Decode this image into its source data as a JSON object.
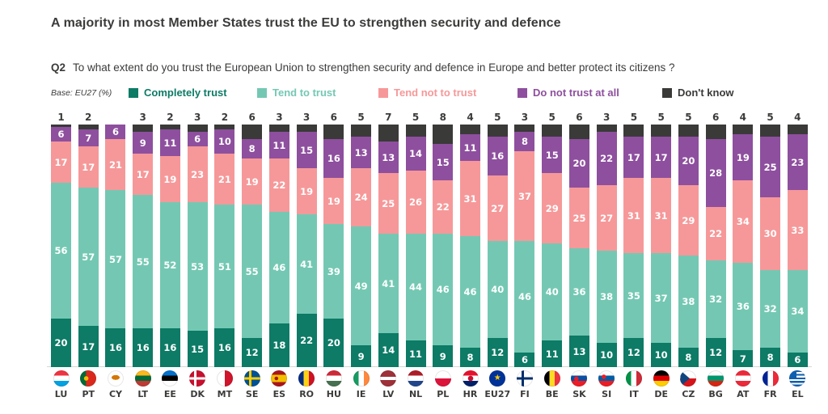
{
  "page": {
    "title": "A majority in most Member States trust the EU to strengthen security and defence",
    "question_code": "Q2",
    "question_text": "To what extent do you trust the European Union to strengthen security and defence in Europe and better protect its citizens ?",
    "base_note": "Base: EU27 (%)"
  },
  "colors": {
    "text_dark": "#3b3b3a",
    "axis_line": "#d6d6d6",
    "completely_trust": "#0d7b66",
    "tend_to_trust": "#74c8b3",
    "tend_not_to_trust": "#f69899",
    "do_not_trust_at_all": "#8e4f9e",
    "dont_know": "#3a3a39"
  },
  "legend": [
    {
      "key": "completely-trust",
      "label": "Completely trust",
      "color": "#0d7b66"
    },
    {
      "key": "tend-to-trust",
      "label": "Tend to trust",
      "color": "#74c8b3"
    },
    {
      "key": "tend-not-to-trust",
      "label": "Tend not to trust",
      "color": "#f69899"
    },
    {
      "key": "do-not-trust-at-all",
      "label": "Do not trust at all",
      "color": "#8e4f9e"
    },
    {
      "key": "dont-know",
      "label": "Don't know",
      "color": "#3a3a39"
    }
  ],
  "chart_data": {
    "type": "bar",
    "stacked": true,
    "orientation": "vertical",
    "unit": "%",
    "ylim": [
      0,
      100
    ],
    "value_labels": "inside segments; Don't know values shown above each bar; zero values not shown",
    "legend_position": "top",
    "categories": [
      "LU",
      "PT",
      "CY",
      "LT",
      "EE",
      "DK",
      "MT",
      "SE",
      "ES",
      "RO",
      "HU",
      "IE",
      "LV",
      "NL",
      "PL",
      "HR",
      "EU27",
      "FI",
      "BE",
      "SK",
      "SI",
      "IT",
      "DE",
      "CZ",
      "BG",
      "AT",
      "FR",
      "EL"
    ],
    "series": [
      {
        "key": "completely-trust",
        "name": "Completely trust",
        "color": "#0d7b66",
        "values": [
          20,
          17,
          16,
          16,
          16,
          15,
          16,
          12,
          18,
          22,
          20,
          9,
          14,
          11,
          9,
          8,
          12,
          6,
          11,
          13,
          10,
          12,
          10,
          8,
          12,
          7,
          8,
          6
        ]
      },
      {
        "key": "tend-to-trust",
        "name": "Tend to trust",
        "color": "#74c8b3",
        "values": [
          56,
          57,
          57,
          55,
          52,
          53,
          51,
          55,
          46,
          41,
          39,
          49,
          41,
          44,
          46,
          46,
          40,
          46,
          40,
          36,
          38,
          35,
          37,
          38,
          32,
          36,
          32,
          34
        ]
      },
      {
        "key": "tend-not-to-trust",
        "name": "Tend not to trust",
        "color": "#f69899",
        "values": [
          17,
          17,
          21,
          17,
          19,
          23,
          21,
          19,
          22,
          19,
          19,
          24,
          25,
          26,
          22,
          31,
          27,
          37,
          29,
          25,
          27,
          31,
          31,
          29,
          22,
          34,
          30,
          33
        ]
      },
      {
        "key": "do-not-trust-at-all",
        "name": "Do not trust at all",
        "color": "#8e4f9e",
        "values": [
          6,
          7,
          6,
          9,
          11,
          6,
          10,
          8,
          11,
          15,
          16,
          13,
          13,
          14,
          15,
          11,
          16,
          8,
          15,
          20,
          22,
          17,
          17,
          20,
          28,
          19,
          25,
          23
        ]
      },
      {
        "key": "dont-know",
        "name": "Don't know",
        "color": "#3a3a39",
        "values": [
          1,
          2,
          0,
          3,
          2,
          3,
          2,
          6,
          3,
          3,
          6,
          5,
          7,
          5,
          8,
          4,
          5,
          3,
          5,
          6,
          3,
          5,
          5,
          5,
          6,
          4,
          5,
          4
        ]
      }
    ]
  }
}
